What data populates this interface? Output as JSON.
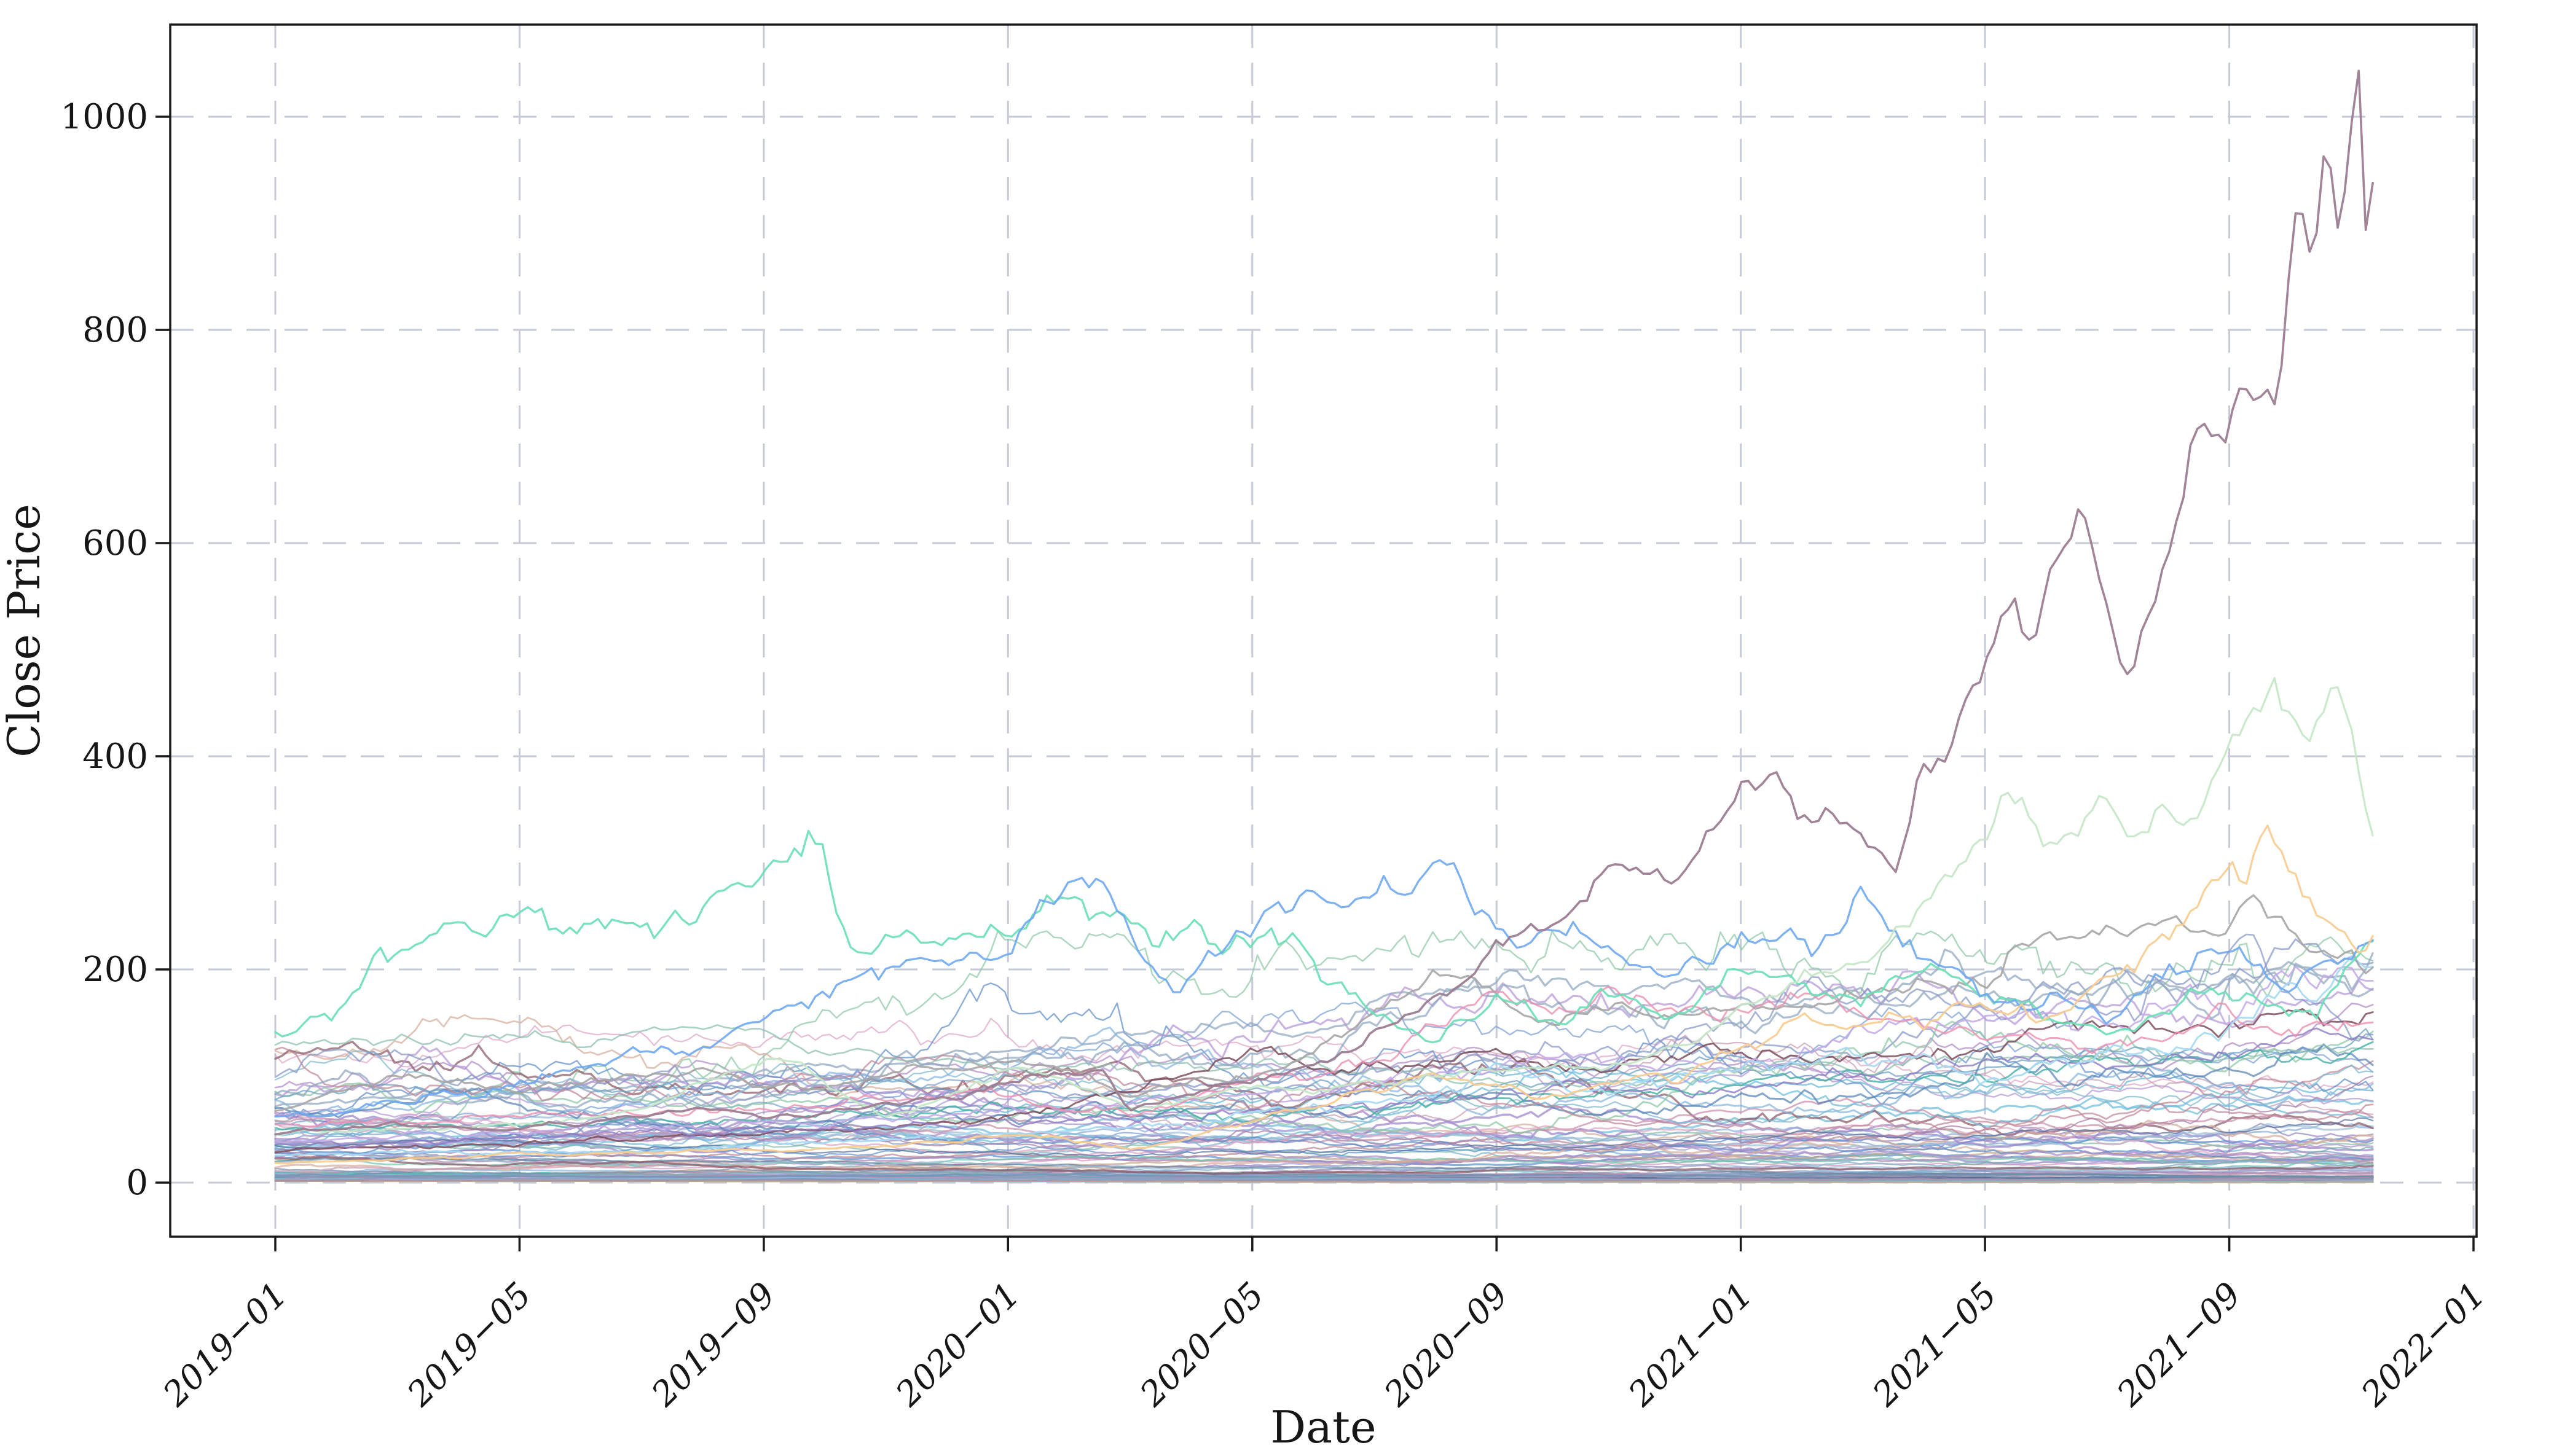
{
  "figure": {
    "background": "#ffffff"
  },
  "axes": {
    "xlabel": "Date",
    "ylabel": "Close Price",
    "x_tick_labels": [
      "2019−01",
      "2019−05",
      "2019−09",
      "2020−01",
      "2020−05",
      "2020−09",
      "2021−01",
      "2021−05",
      "2021−09",
      "2022−01"
    ],
    "x_tick_months": [
      0,
      4,
      8,
      12,
      16,
      20,
      24,
      28,
      32,
      36
    ],
    "y_tick_labels": [
      "0",
      "200",
      "400",
      "600",
      "800",
      "1000"
    ],
    "y_tick_values": [
      0,
      200,
      400,
      600,
      800,
      1000
    ],
    "grid_color": "#c6cad6",
    "spine_color": "#1a1a1a",
    "text_color": "#161616"
  },
  "chart_data": {
    "type": "line",
    "title": "",
    "xlabel": "Date",
    "ylabel": "Close Price",
    "x_start_month": "2019-01",
    "x_end_month_index": 34.35,
    "ylim": [
      -51,
      1087
    ],
    "grid": true,
    "legend": false,
    "series": [
      {
        "name": "teal-mid",
        "color": "#45b0a6",
        "alpha": 0.8,
        "width": 2.8,
        "noise": 0.03,
        "anchor_months": [
          0,
          2,
          4,
          8,
          12,
          16,
          20,
          24,
          28,
          32,
          34.35
        ],
        "anchor_values": [
          50,
          54,
          56,
          60,
          70,
          62,
          80,
          90,
          100,
          120,
          126
        ]
      },
      {
        "name": "maroon",
        "color": "#7c4f5e",
        "alpha": 0.85,
        "width": 2.9,
        "noise": 0.028,
        "anchor_months": [
          0,
          3,
          6,
          9,
          12,
          14,
          16,
          18,
          20,
          22,
          24,
          26,
          28,
          30,
          32,
          34,
          34.35
        ],
        "anchor_values": [
          28,
          35,
          42,
          50,
          60,
          85,
          120,
          105,
          118,
          108,
          125,
          115,
          132,
          142,
          152,
          150,
          148
        ]
      },
      {
        "name": "purple",
        "color": "#8d7cc4",
        "alpha": 0.8,
        "width": 2.8,
        "noise": 0.03,
        "anchor_months": [
          0,
          3,
          6,
          9,
          12,
          15,
          18,
          21,
          24,
          26,
          28,
          30,
          32,
          33.5,
          34.35
        ],
        "anchor_values": [
          35,
          40,
          46,
          50,
          56,
          62,
          72,
          88,
          86,
          100,
          118,
          110,
          130,
          150,
          140
        ]
      },
      {
        "name": "violet",
        "color": "#c3a9e6",
        "alpha": 0.85,
        "width": 2.9,
        "noise": 0.03,
        "anchor_months": [
          0,
          3,
          6,
          9,
          12,
          15,
          18,
          20,
          22,
          24,
          26,
          28,
          29,
          30,
          31,
          31.4,
          32,
          33,
          34,
          34.35
        ],
        "anchor_values": [
          40,
          46,
          52,
          58,
          66,
          78,
          94,
          110,
          120,
          104,
          140,
          158,
          150,
          148,
          172,
          178,
          158,
          198,
          186,
          178
        ]
      },
      {
        "name": "pink",
        "color": "#ec8fb0",
        "alpha": 0.8,
        "width": 2.9,
        "noise": 0.028,
        "anchor_months": [
          0,
          2,
          4,
          6,
          8,
          10,
          12,
          14,
          16,
          18,
          19,
          20,
          21,
          22,
          23,
          24,
          25,
          26,
          28,
          30,
          32,
          33,
          34,
          34.35
        ],
        "anchor_values": [
          55,
          58,
          62,
          66,
          70,
          76,
          80,
          64,
          92,
          112,
          148,
          164,
          158,
          178,
          170,
          160,
          176,
          150,
          140,
          130,
          152,
          140,
          146,
          148
        ]
      },
      {
        "name": "skyblue",
        "color": "#a6d9f2",
        "alpha": 0.9,
        "width": 3.0,
        "noise": 0.03,
        "anchor_months": [
          0,
          3,
          6,
          9,
          12,
          14,
          16,
          18,
          20,
          22,
          24,
          26,
          28,
          30,
          31,
          32,
          33,
          33.5,
          34,
          34.35
        ],
        "anchor_values": [
          25,
          28,
          30,
          38,
          45,
          52,
          62,
          78,
          100,
          88,
          110,
          122,
          104,
          126,
          118,
          148,
          186,
          178,
          200,
          206
        ]
      },
      {
        "name": "gray",
        "color": "#a6a6a6",
        "alpha": 0.9,
        "width": 3.2,
        "noise": 0.02,
        "anchor_months": [
          0,
          1,
          2,
          3,
          4,
          5,
          6,
          7,
          8,
          9,
          10,
          11,
          12,
          13,
          14,
          15,
          16,
          17,
          18,
          19,
          20,
          21,
          22,
          23,
          24,
          25,
          26,
          27,
          28,
          29,
          30,
          30.5,
          31,
          31.5,
          32,
          32.5,
          33,
          33.5,
          34,
          34.35
        ],
        "anchor_values": [
          65,
          82,
          100,
          96,
          90,
          94,
          100,
          106,
          96,
          90,
          100,
          106,
          110,
          104,
          80,
          94,
          100,
          120,
          158,
          196,
          178,
          150,
          162,
          155,
          170,
          165,
          186,
          190,
          200,
          222,
          242,
          232,
          260,
          248,
          255,
          272,
          238,
          222,
          210,
          200
        ]
      },
      {
        "name": "aquamarine",
        "color": "#68dfb4",
        "alpha": 0.9,
        "width": 3.3,
        "noise": 0.026,
        "anchor_months": [
          0,
          0.5,
          1,
          1.5,
          2,
          2.5,
          3,
          3.5,
          4,
          4.5,
          5,
          5.5,
          6,
          6.5,
          7,
          7.5,
          8,
          8.5,
          8.95,
          9.3,
          9.6,
          10,
          10.5,
          11,
          11.5,
          12,
          12.5,
          13,
          13.5,
          14,
          14.5,
          15,
          15.5,
          16,
          16.5,
          17,
          17.5,
          18,
          18.5,
          19,
          19.5,
          20,
          20.5,
          21,
          21.5,
          22,
          22.5,
          23,
          23.5,
          24,
          24.5,
          25,
          25.5,
          26,
          26.5,
          27,
          27.5,
          28,
          28.5,
          29,
          29.5,
          30,
          30.5,
          31,
          31.5,
          32,
          32.5,
          33,
          33.5,
          34,
          34.35
        ],
        "anchor_values": [
          137,
          148,
          162,
          205,
          228,
          240,
          246,
          238,
          252,
          242,
          232,
          238,
          250,
          242,
          256,
          270,
          285,
          300,
          310,
          240,
          202,
          230,
          226,
          244,
          250,
          238,
          252,
          256,
          242,
          236,
          228,
          238,
          230,
          232,
          222,
          205,
          178,
          150,
          143,
          140,
          152,
          168,
          158,
          150,
          162,
          178,
          168,
          158,
          172,
          198,
          188,
          180,
          172,
          162,
          198,
          192,
          182,
          188,
          172,
          158,
          150,
          148,
          160,
          168,
          175,
          182,
          172,
          155,
          168,
          205,
          228
        ]
      },
      {
        "name": "blue",
        "color": "#6fa8ef",
        "alpha": 0.9,
        "width": 3.3,
        "noise": 0.026,
        "anchor_months": [
          0,
          1,
          2,
          3,
          4,
          5,
          6,
          7,
          8,
          9,
          10,
          11,
          12,
          12.6,
          13,
          13.6,
          14.1,
          14.7,
          15.2,
          16,
          17,
          18,
          18.6,
          19,
          19.4,
          19.8,
          20.2,
          20.6,
          21,
          22,
          23,
          24,
          25,
          25.6,
          26,
          26.4,
          27,
          28,
          29,
          30,
          31,
          32,
          33,
          34,
          34.35
        ],
        "anchor_values": [
          62,
          60,
          74,
          84,
          90,
          108,
          128,
          122,
          148,
          178,
          198,
          208,
          218,
          258,
          272,
          290,
          220,
          178,
          210,
          238,
          248,
          258,
          282,
          296,
          300,
          268,
          240,
          228,
          232,
          208,
          190,
          224,
          230,
          228,
          288,
          235,
          208,
          182,
          168,
          158,
          196,
          224,
          196,
          214,
          233
        ]
      },
      {
        "name": "orange",
        "color": "#f7cc8f",
        "alpha": 0.9,
        "width": 3.2,
        "noise": 0.024,
        "anchor_months": [
          0,
          2,
          4,
          6,
          8,
          10,
          12,
          13,
          14,
          15,
          16,
          17,
          18,
          19,
          20,
          21,
          22,
          23,
          24,
          25,
          26,
          27,
          28,
          29,
          30,
          31,
          31.5,
          32,
          32.3,
          32.6,
          33,
          33.4,
          33.8,
          34.1,
          34.35
        ],
        "anchor_values": [
          18,
          22,
          26,
          28,
          30,
          36,
          44,
          40,
          30,
          42,
          58,
          72,
          86,
          100,
          90,
          80,
          94,
          100,
          128,
          158,
          144,
          158,
          170,
          150,
          190,
          238,
          262,
          308,
          290,
          328,
          292,
          250,
          232,
          212,
          222
        ]
      },
      {
        "name": "palegreen",
        "color": "#c4e7c6",
        "alpha": 0.9,
        "width": 3.2,
        "noise": 0.02,
        "anchor_months": [
          0,
          2,
          4,
          6,
          7,
          8,
          8.5,
          9,
          10,
          11,
          12,
          13,
          14,
          15,
          16,
          17,
          18,
          19,
          20,
          22,
          23,
          24,
          25,
          26,
          27,
          27.5,
          28,
          28.3,
          28.7,
          29,
          29.5,
          30,
          30.5,
          31,
          31.5,
          32,
          32.4,
          32.8,
          33.05,
          33.3,
          33.5,
          33.7,
          34,
          34.2,
          34.35
        ],
        "anchor_values": [
          45,
          50,
          55,
          70,
          95,
          112,
          118,
          95,
          62,
          75,
          108,
          95,
          70,
          80,
          90,
          85,
          95,
          100,
          105,
          110,
          125,
          160,
          190,
          212,
          262,
          300,
          332,
          378,
          362,
          330,
          312,
          345,
          330,
          368,
          352,
          408,
          452,
          470,
          430,
          407,
          440,
          466,
          420,
          368,
          332
        ]
      },
      {
        "name": "mauve",
        "color": "#9c7d92",
        "alpha": 0.95,
        "width": 3.6,
        "noise": 0.018,
        "anchor_months": [
          0,
          1,
          2,
          3,
          4,
          5,
          6,
          7,
          8,
          9,
          10,
          11,
          12,
          13,
          13.6,
          14,
          15,
          16,
          17,
          18,
          19,
          20,
          21,
          22,
          23,
          24,
          24.6,
          25,
          26,
          26.6,
          27,
          27.5,
          28,
          28.4,
          28.8,
          29.2,
          29.6,
          29.9,
          30.3,
          30.7,
          31.1,
          31.5,
          31.9,
          32.2,
          32.5,
          32.8,
          33.1,
          33.35,
          33.6,
          33.8,
          34,
          34.12,
          34.22,
          34.35
        ],
        "anchor_values": [
          45,
          50,
          56,
          52,
          50,
          55,
          66,
          70,
          63,
          66,
          72,
          80,
          92,
          100,
          104,
          68,
          85,
          95,
          108,
          135,
          168,
          225,
          252,
          292,
          288,
          385,
          395,
          345,
          328,
          302,
          400,
          435,
          495,
          552,
          518,
          592,
          658,
          588,
          478,
          556,
          622,
          700,
          640,
          730,
          698,
          762,
          905,
          858,
          958,
          898,
          1000,
          1035,
          912,
          965
        ]
      }
    ],
    "background_series": {
      "count": 85,
      "seed": 20190101,
      "alpha": 0.72,
      "width": 2.6,
      "start_value_range": [
        1.5,
        130
      ],
      "max_value": 236,
      "palette": [
        "#7b9fd4",
        "#b08cc6",
        "#d897bc",
        "#6fbcd9",
        "#72c8b3",
        "#5d93d1",
        "#9d83ca",
        "#c98ca9",
        "#86b5de",
        "#64b7d6",
        "#ae9fd6",
        "#dea6c6",
        "#7ea7c8",
        "#8fc7a6",
        "#5e8ec8",
        "#a991c8",
        "#d6ae9e",
        "#84bfe6",
        "#b697d6",
        "#699fc2",
        "#90b2de",
        "#c79fb6",
        "#7eb9ce",
        "#9687bf",
        "#5782b6",
        "#bf8797",
        "#9fb2d6",
        "#76aea6",
        "#8797c6",
        "#ae8ab6",
        "#6696b6",
        "#8abfae",
        "#a67ea6",
        "#768eae",
        "#c6a686",
        "#8fa6bf",
        "#b68f9f",
        "#66869f",
        "#9fbfd6",
        "#566e9f",
        "#8a5a66",
        "#6a5a8a",
        "#4a6a9a",
        "#35c4b5"
      ]
    }
  }
}
